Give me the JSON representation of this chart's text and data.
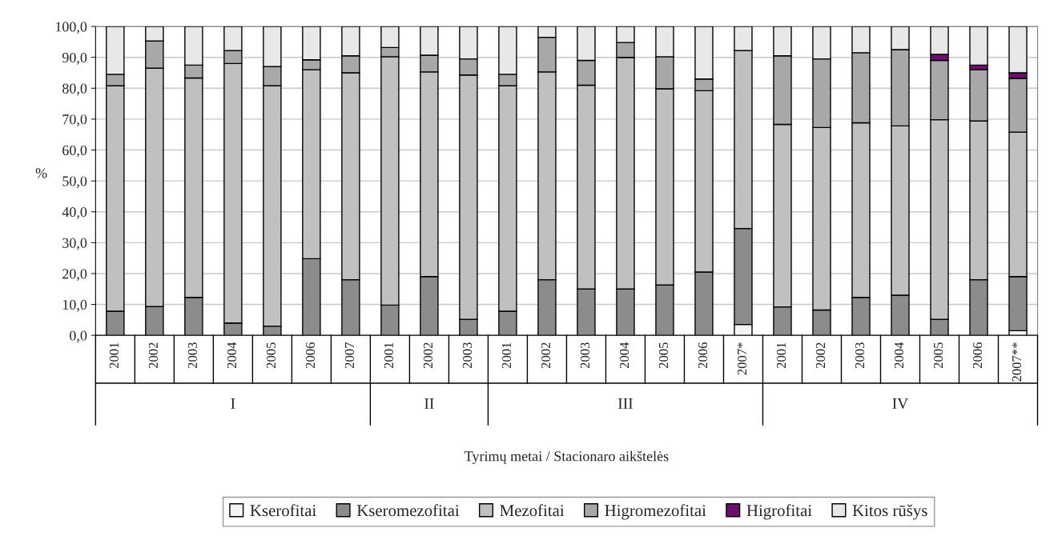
{
  "chart_data": {
    "type": "bar",
    "stacked": true,
    "xlabel": "Tyrimų metai / Stacionaro aikštelės",
    "ylabel": "%",
    "categories": [
      "2001",
      "2002",
      "2003",
      "2004",
      "2005",
      "2006",
      "2007",
      "2001",
      "2002",
      "2003",
      "2001",
      "2002",
      "2003",
      "2004",
      "2005",
      "2006",
      "2007*",
      "2001",
      "2002",
      "2003",
      "2004",
      "2005",
      "2006",
      "2007**"
    ],
    "annotations": [
      "I",
      "II",
      "III",
      "IV"
    ],
    "series": [
      {
        "name": "Kserofitai",
        "color": "#f4f4f4",
        "values": [
          null,
          null,
          null,
          null,
          null,
          null,
          null,
          null,
          null,
          null,
          null,
          null,
          null,
          null,
          null,
          null,
          3.5,
          null,
          null,
          null,
          null,
          null,
          null,
          1.5
        ]
      },
      {
        "name": "Kseromezofitai",
        "color": "#8c8c8c",
        "values": [
          7.8,
          9.3,
          12.3,
          4.0,
          3.0,
          24.8,
          18.0,
          9.8,
          19.0,
          5.2,
          7.8,
          18.0,
          15.0,
          15.0,
          16.3,
          20.5,
          31.1,
          9.2,
          8.2,
          12.3,
          13.0,
          5.2,
          18.0,
          17.5
        ]
      },
      {
        "name": "Mezofitai",
        "color": "#c0c0c0",
        "values": [
          73.0,
          77.2,
          71.0,
          84.0,
          77.8,
          61.2,
          67.0,
          80.4,
          66.3,
          79.1,
          73.0,
          67.3,
          66.0,
          75.0,
          63.5,
          58.7,
          57.6,
          59.1,
          59.1,
          56.5,
          54.8,
          64.6,
          51.4,
          46.8
        ]
      },
      {
        "name": "Higromezofitai",
        "color": "#a8a8a8",
        "values": [
          3.7,
          8.8,
          4.2,
          4.2,
          6.2,
          3.2,
          5.5,
          3.0,
          5.4,
          5.2,
          3.7,
          11.2,
          8.0,
          4.8,
          10.4,
          3.8,
          null,
          22.2,
          22.2,
          22.7,
          24.7,
          19.2,
          16.6,
          17.4
        ]
      },
      {
        "name": "Higrofitai",
        "color": "#6e0f6e",
        "values": [
          null,
          null,
          null,
          null,
          null,
          null,
          null,
          null,
          null,
          null,
          null,
          null,
          null,
          null,
          null,
          null,
          null,
          null,
          null,
          null,
          null,
          2.0,
          1.5,
          1.8
        ]
      },
      {
        "name": "Kitos rūšys",
        "color": "#e8e8e8",
        "values": [
          15.5,
          4.7,
          12.5,
          7.8,
          13.0,
          10.8,
          9.5,
          6.8,
          9.3,
          10.5,
          15.5,
          3.5,
          11.0,
          5.2,
          9.8,
          17.0,
          7.8,
          9.5,
          10.5,
          8.5,
          7.5,
          9.0,
          12.5,
          15.0
        ]
      }
    ],
    "ylim": [
      0,
      100
    ],
    "yticks": [
      {
        "value": 0,
        "label": "0,0"
      },
      {
        "value": 10,
        "label": "10,0"
      },
      {
        "value": 20,
        "label": "20,0"
      },
      {
        "value": 30,
        "label": "30,0"
      },
      {
        "value": 40,
        "label": "40,0"
      },
      {
        "value": 50,
        "label": "50,0"
      },
      {
        "value": 60,
        "label": "60,0"
      },
      {
        "value": 70,
        "label": "70,0"
      },
      {
        "value": 80,
        "label": "80,0"
      },
      {
        "value": 90,
        "label": "90,0"
      },
      {
        "value": 100,
        "label": "100,0"
      }
    ],
    "grid": "y",
    "legend": "bottom"
  }
}
